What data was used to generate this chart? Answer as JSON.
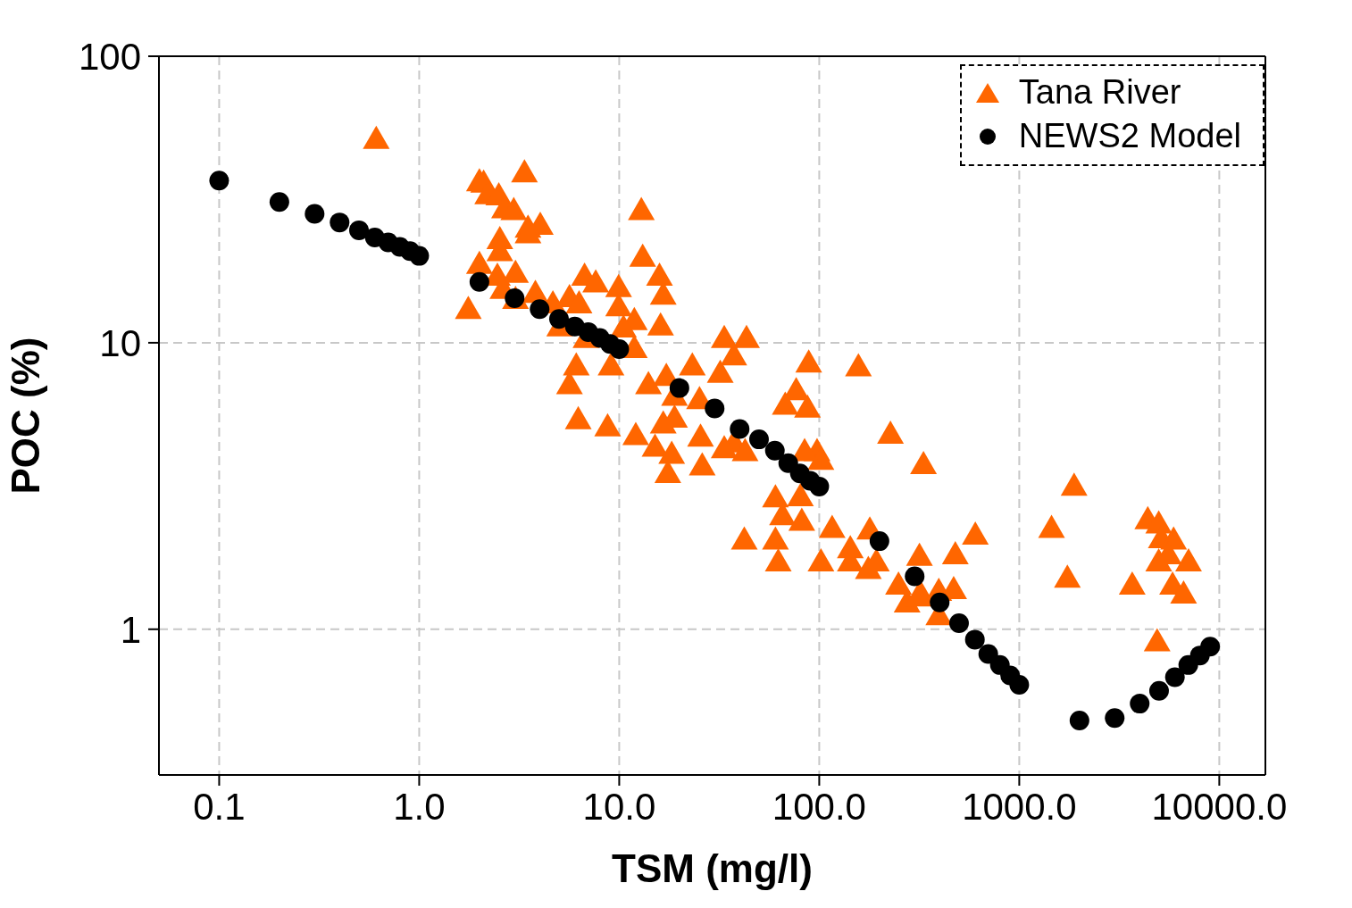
{
  "chart_data": {
    "type": "scatter",
    "xlabel": "TSM (mg/l)",
    "ylabel": "POC (%)",
    "log": "xy",
    "grid": true,
    "legend": "top right",
    "xlim": [
      0.05,
      17000
    ],
    "ylim": [
      0.31,
      100
    ],
    "xticks": [
      {
        "value": 0.1,
        "label": "0.1"
      },
      {
        "value": 1,
        "label": "1.0"
      },
      {
        "value": 10,
        "label": "10.0"
      },
      {
        "value": 100,
        "label": "100.0"
      },
      {
        "value": 1000,
        "label": "1000.0"
      },
      {
        "value": 10000,
        "label": "10000.0"
      }
    ],
    "yticks": [
      1,
      10,
      100
    ],
    "series": [
      {
        "name": "Tana River",
        "color": "#ff6600",
        "marker": "triangle",
        "x": [
          0.61,
          2.0,
          2.1,
          2.2,
          2.5,
          2.67,
          2.97,
          3.36,
          4.03,
          3.5,
          3.5,
          2.53,
          2.53,
          2.0,
          2.46,
          3.03,
          2.62,
          3.03,
          1.76,
          3.81,
          4.66,
          5.64,
          6.3,
          5.04,
          6.71,
          7.63,
          9.93,
          9.93,
          11.9,
          12.9,
          13.1,
          15.9,
          16.6,
          16.1,
          10.5,
          11.9,
          6.82,
          6.1,
          9.1,
          5.64,
          6.24,
          8.75,
          14,
          17.2,
          23.2,
          18.9,
          12.1,
          15.1,
          16.6,
          18.9,
          18.3,
          17.5,
          26,
          25.2,
          25.5,
          88.6,
          157,
          76.7,
          67.6,
          87.3,
          227,
          332,
          32,
          37.4,
          33.5,
          43.3,
          37.5,
          42.6,
          33.5,
          97.5,
          102,
          84.5,
          60.4,
          80.5,
          65.5,
          81.8,
          42.2,
          60.4,
          62.4,
          102,
          116,
          143,
          143,
          179,
          176,
          193,
          249,
          275,
          317,
          322,
          396,
          396,
          479,
          603,
          470,
          312,
          1880,
          1450,
          1740,
          4390,
          4980,
          5130,
          5910,
          4980,
          5570,
          7020,
          3670,
          5840,
          6630,
          4890
        ],
        "values": [
          51,
          36.3,
          35.9,
          32.7,
          32.4,
          29.2,
          28.8,
          39,
          25.6,
          25,
          23.9,
          22.8,
          20.7,
          18.7,
          17,
          17.4,
          15.3,
          14.1,
          13,
          14.8,
          13.6,
          14.3,
          13.6,
          11.3,
          17,
          16.1,
          15.5,
          13.3,
          11.9,
          28.8,
          19.8,
          17,
          14.6,
          11.4,
          11.2,
          9.5,
          10.3,
          8.26,
          8.26,
          7.1,
          5.36,
          5.06,
          7.1,
          7.6,
          8.26,
          6.47,
          4.72,
          4.3,
          5.18,
          5.43,
          4.06,
          3.48,
          3.7,
          6.3,
          4.66,
          8.45,
          8.2,
          6.77,
          6.03,
          5.89,
          4.77,
          3.74,
          7.79,
          8.96,
          10.3,
          10.3,
          4.45,
          4.15,
          4.25,
          4.15,
          3.87,
          4.15,
          2.86,
          2.89,
          2.48,
          2.37,
          2.04,
          2.04,
          1.71,
          1.71,
          2.24,
          1.9,
          1.71,
          2.21,
          1.61,
          1.71,
          1.42,
          1.23,
          1.79,
          1.32,
          1.35,
          1.11,
          1.81,
          2.12,
          1.37,
          1.29,
          3.14,
          2.24,
          1.5,
          2.4,
          2.32,
          2.06,
          2.04,
          1.71,
          1.81,
          1.71,
          1.42,
          1.42,
          1.32,
          0.9
        ]
      },
      {
        "name": "NEWS2 Model",
        "color": "#000000",
        "marker": "circle",
        "x": [
          0.1,
          0.2,
          0.3,
          0.4,
          0.5,
          0.6,
          0.7,
          0.8,
          0.9,
          1,
          2,
          3,
          4,
          5,
          6,
          7,
          8,
          9,
          10,
          20,
          30,
          40,
          50,
          60,
          70,
          80,
          90,
          100,
          200,
          300,
          400,
          500,
          600,
          700,
          800,
          900,
          1000,
          2000,
          3000,
          4000,
          5000,
          6000,
          7000,
          8000,
          9000
        ],
        "values": [
          36.8,
          31,
          28.2,
          26.3,
          24.7,
          23.3,
          22.4,
          21.6,
          20.9,
          20.1,
          16.3,
          14.3,
          13.1,
          12.1,
          11.4,
          10.9,
          10.4,
          9.9,
          9.5,
          6.95,
          5.9,
          5,
          4.6,
          4.2,
          3.8,
          3.5,
          3.3,
          3.15,
          2.03,
          1.53,
          1.24,
          1.05,
          0.92,
          0.82,
          0.75,
          0.69,
          0.64,
          0.48,
          0.49,
          0.55,
          0.61,
          0.68,
          0.75,
          0.81,
          0.87
        ]
      }
    ]
  }
}
